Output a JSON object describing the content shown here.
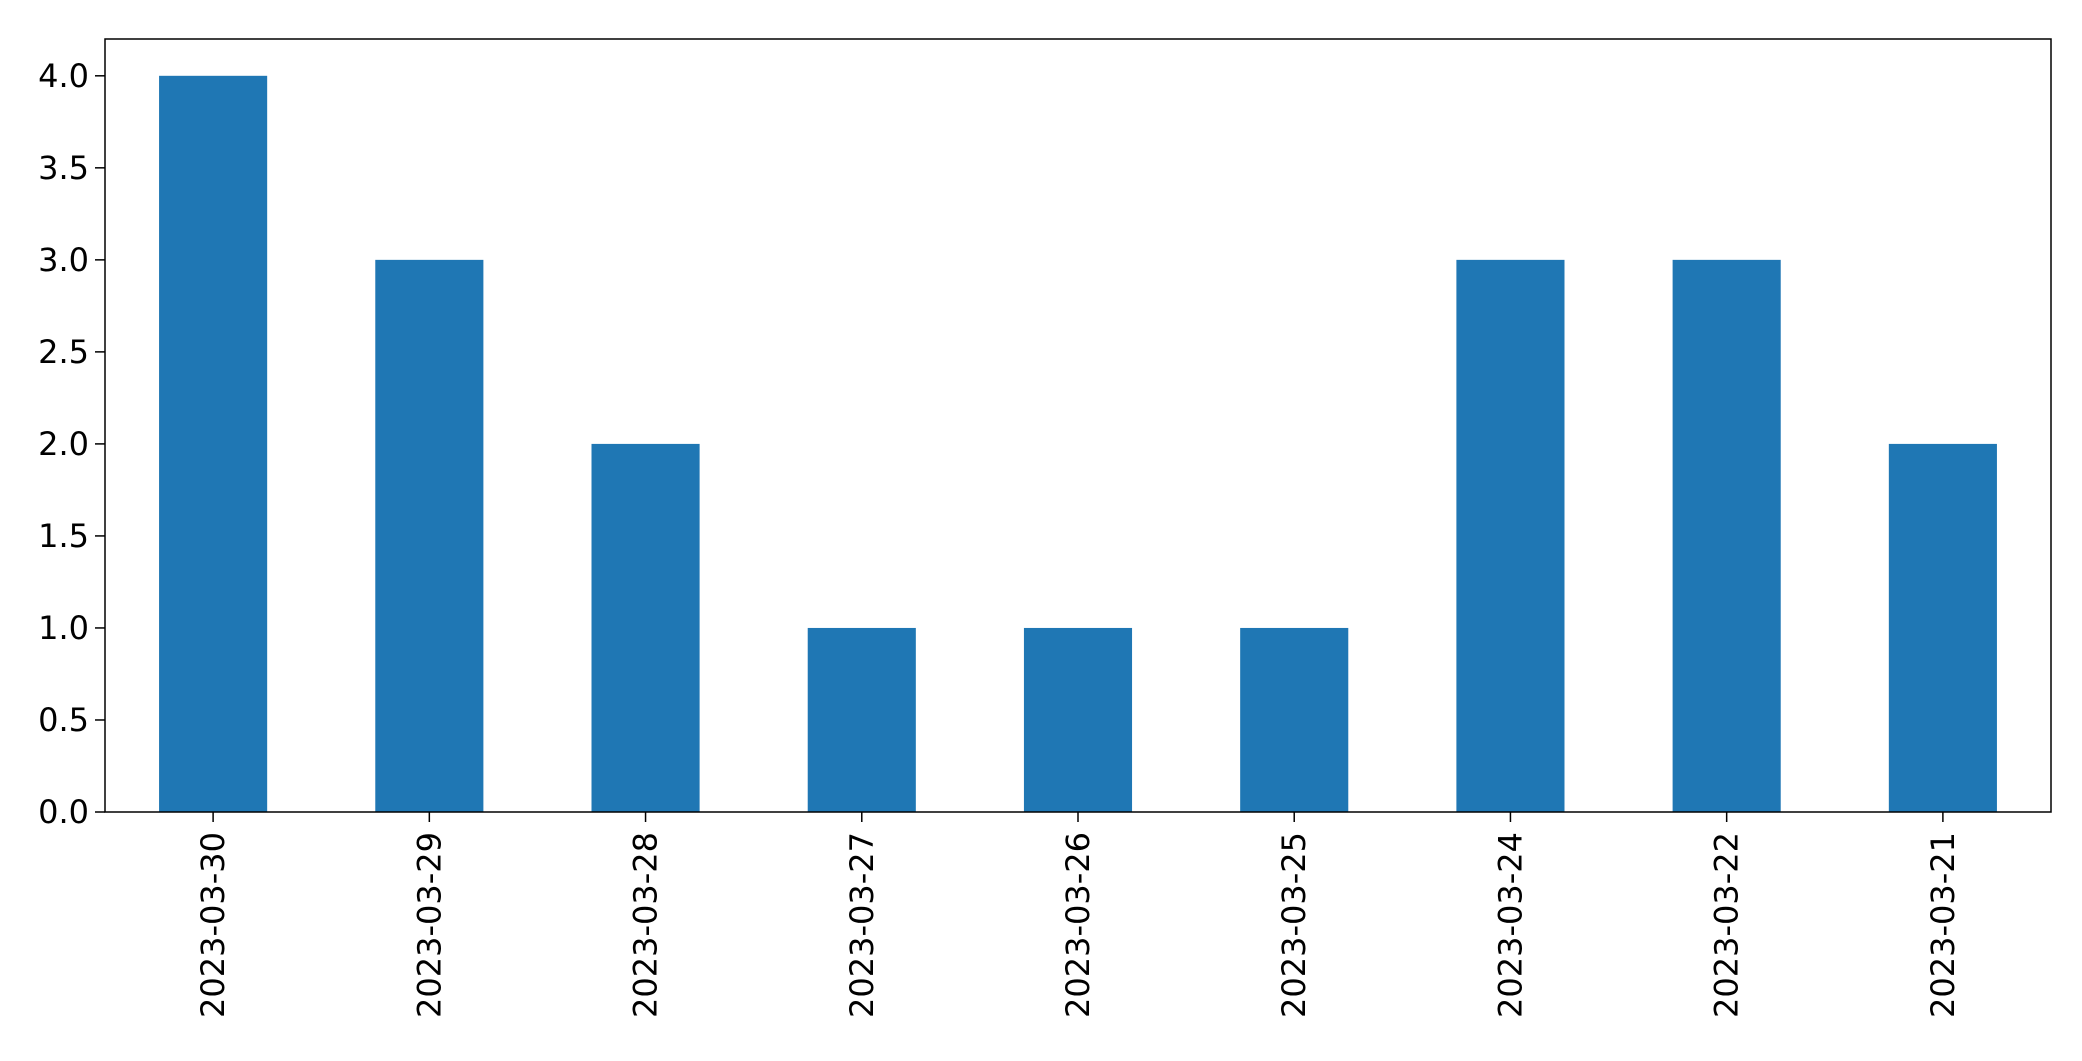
{
  "chart_data": {
    "type": "bar",
    "categories": [
      "2023-03-30",
      "2023-03-29",
      "2023-03-28",
      "2023-03-27",
      "2023-03-26",
      "2023-03-25",
      "2023-03-24",
      "2023-03-22",
      "2023-03-21"
    ],
    "values": [
      4,
      3,
      2,
      1,
      1,
      1,
      3,
      3,
      2
    ],
    "ylim": [
      0,
      4.2
    ],
    "yticks": [
      0.0,
      0.5,
      1.0,
      1.5,
      2.0,
      2.5,
      3.0,
      3.5,
      4.0
    ],
    "ytick_labels": [
      "0.0",
      "0.5",
      "1.0",
      "1.5",
      "2.0",
      "2.5",
      "3.0",
      "3.5",
      "4.0"
    ],
    "title": "",
    "xlabel": "",
    "ylabel": "",
    "legend": "none",
    "grid": false,
    "bar_color": "#1f77b4"
  }
}
